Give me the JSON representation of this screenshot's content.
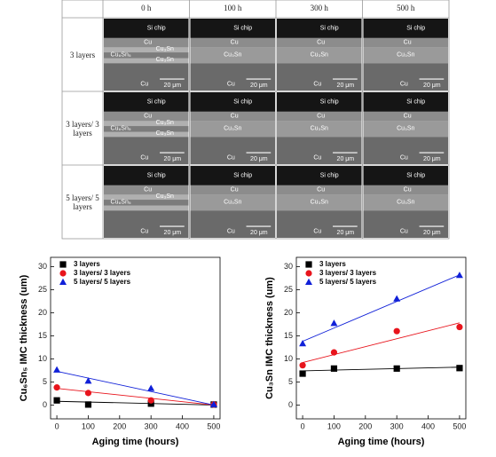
{
  "image_grid": {
    "columns": [
      "0 h",
      "100 h",
      "300 h",
      "500 h"
    ],
    "rows": [
      {
        "label": "3 layers",
        "cells": [
          {
            "top": "Si chip",
            "upper": "Cu",
            "imc": [
              "Cu₆Sn₅",
              "Cu₃Sn",
              "Cu₃Sn"
            ],
            "lower": "Cu",
            "scale": "20 μm"
          },
          {
            "top": "Si chip",
            "upper": "Cu",
            "imc": [
              "Cu₃Sn"
            ],
            "lower": "Cu",
            "scale": "20 μm"
          },
          {
            "top": "Si chip",
            "upper": "Cu",
            "imc": [
              "Cu₃Sn"
            ],
            "lower": "Cu",
            "scale": "20 μm"
          },
          {
            "top": "Si chip",
            "upper": "Cu",
            "imc": [
              "Cu₃Sn"
            ],
            "lower": "Cu",
            "scale": "20 μm"
          }
        ]
      },
      {
        "label": "3 layers/ 3 layers",
        "cells": [
          {
            "top": "Si chip",
            "upper": "Cu",
            "imc": [
              "Cu₆Sn₅",
              "Cu₃Sn",
              "Cu₃Sn"
            ],
            "lower": "Cu",
            "scale": "20 μm"
          },
          {
            "top": "Si chip",
            "upper": "Cu",
            "imc": [
              "Cu₃Sn"
            ],
            "lower": "Cu",
            "scale": "20 μm"
          },
          {
            "top": "Si chip",
            "upper": "Cu",
            "imc": [
              "Cu₃Sn"
            ],
            "lower": "Cu",
            "scale": "20 μm"
          },
          {
            "top": "Si chip",
            "upper": "Cu",
            "imc": [
              "Cu₃Sn"
            ],
            "lower": "Cu",
            "scale": "20 μm"
          }
        ]
      },
      {
        "label": "5 layers/ 5 layers",
        "cells": [
          {
            "top": "Si chip",
            "upper": "Cu",
            "imc": [
              "Cu₆Sn₅",
              "Cu₃Sn"
            ],
            "lower": "Cu",
            "scale": "20 μm"
          },
          {
            "top": "Si chip",
            "upper": "Cu",
            "imc": [
              "Cu₃Sn"
            ],
            "lower": "Cu",
            "scale": "20 μm"
          },
          {
            "top": "Si chip",
            "upper": "Cu",
            "imc": [
              "Cu₃Sn"
            ],
            "lower": "Cu",
            "scale": "20 μm"
          },
          {
            "top": "Si chip",
            "upper": "Cu",
            "imc": [
              "Cu₃Sn"
            ],
            "lower": "Cu",
            "scale": "20 μm"
          }
        ]
      }
    ]
  },
  "chart_data": [
    {
      "type": "scatter",
      "x_label": "Aging time (hours)",
      "y_label": "Cu₆Sn₅ IMC thickness (um)",
      "x": [
        0,
        100,
        300,
        500
      ],
      "xlim": [
        -20,
        520
      ],
      "xticks": [
        0,
        100,
        200,
        300,
        400,
        500
      ],
      "ylim": [
        -3,
        32
      ],
      "yticks": [
        0,
        5,
        10,
        15,
        20,
        25,
        30
      ],
      "legend": "upper-left",
      "series": [
        {
          "name": "3 layers",
          "color": "#000000",
          "marker": "square",
          "values": [
            1.0,
            0.1,
            0.3,
            0.1
          ],
          "fit": [
            0.8,
            0
          ]
        },
        {
          "name": "3 layers/ 3 layers",
          "color": "#e8141c",
          "marker": "circle",
          "values": [
            3.8,
            2.6,
            1.0,
            0.1
          ],
          "fit": [
            3.6,
            0
          ]
        },
        {
          "name": "5 layers/ 5 layers",
          "color": "#1020d8",
          "marker": "triangle",
          "values": [
            7.6,
            5.2,
            3.6,
            0.1
          ],
          "fit": [
            7.3,
            0
          ]
        }
      ]
    },
    {
      "type": "scatter",
      "x_label": "Aging time (hours)",
      "y_label": "Cu₃Sn IMC thickness (um)",
      "x": [
        0,
        100,
        300,
        500
      ],
      "xlim": [
        -20,
        520
      ],
      "xticks": [
        0,
        100,
        200,
        300,
        400,
        500
      ],
      "ylim": [
        -3,
        32
      ],
      "yticks": [
        0,
        5,
        10,
        15,
        20,
        25,
        30
      ],
      "legend": "upper-left",
      "series": [
        {
          "name": "3 layers",
          "color": "#000000",
          "marker": "square",
          "values": [
            6.8,
            7.9,
            7.9,
            8.0
          ],
          "fit": [
            7.4,
            8.2
          ]
        },
        {
          "name": "3 layers/ 3 layers",
          "color": "#e8141c",
          "marker": "circle",
          "values": [
            8.6,
            11.4,
            16.0,
            16.9
          ],
          "fit": [
            9.2,
            17.8
          ]
        },
        {
          "name": "5 layers/ 5 layers",
          "color": "#1020d8",
          "marker": "triangle",
          "values": [
            13.3,
            17.7,
            23.0,
            28.1
          ],
          "fit": [
            13.8,
            28.2
          ]
        }
      ]
    }
  ]
}
